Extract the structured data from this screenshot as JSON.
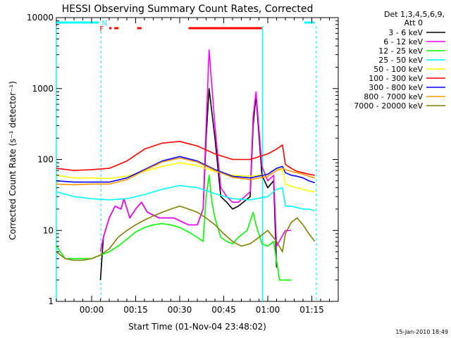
{
  "chart_data": {
    "type": "line",
    "title": "HESSI Observing Summary Count Rates, Corrected",
    "xlabel": "Start Time (01-Nov-04 23:48:02)",
    "ylabel": "Corrected Count Rate (s⁻¹ detector⁻¹)",
    "x_unit": "minutes after 01-Nov-04 23:48:02",
    "xlim": [
      0,
      96
    ],
    "ylim": [
      1,
      10000
    ],
    "y_scale": "log",
    "x_tick_minutes": [
      12,
      27,
      42,
      57,
      72,
      87
    ],
    "x_tick_labels": [
      "00:00",
      "00:15",
      "00:30",
      "00:45",
      "01:00",
      "01:15"
    ],
    "y_ticks": [
      1,
      10,
      100,
      1000,
      10000
    ],
    "y_tick_labels": [
      "1",
      "10",
      "100",
      "1000",
      "10000"
    ],
    "legend": {
      "placement": "right",
      "header": [
        "Det 1,3,4,5,6,9,",
        "Att 0"
      ]
    },
    "series": [
      {
        "name": "3 - 6 keV",
        "color": "#000000",
        "x": [
          15,
          16,
          18,
          20,
          22,
          23,
          25,
          27,
          29,
          31,
          35,
          40,
          45,
          48,
          50,
          51,
          52,
          54,
          56,
          58,
          60,
          62,
          66,
          67,
          68,
          70,
          72,
          74,
          75
        ],
        "y": [
          2,
          8,
          15,
          22,
          20,
          28,
          15,
          20,
          25,
          18,
          15,
          15,
          12,
          12,
          20,
          200,
          1000,
          200,
          30,
          25,
          20,
          22,
          30,
          300,
          800,
          60,
          40,
          50,
          3
        ]
      },
      {
        "name": "6 - 12 keV",
        "color": "#ff00ff",
        "x": [
          15,
          16,
          18,
          20,
          22,
          23,
          25,
          27,
          29,
          31,
          35,
          40,
          45,
          48,
          50,
          51,
          52,
          54,
          56,
          58,
          60,
          62,
          66,
          67,
          68,
          70,
          72,
          74,
          75,
          78,
          80
        ],
        "y": [
          5,
          8,
          15,
          22,
          20,
          28,
          15,
          20,
          25,
          18,
          15,
          15,
          12,
          12,
          20,
          300,
          3500,
          300,
          40,
          30,
          25,
          25,
          35,
          400,
          900,
          80,
          50,
          60,
          6,
          10,
          10
        ]
      },
      {
        "name": "12 - 25 keV",
        "color": "#00ff00",
        "x": [
          0,
          3,
          6,
          9,
          12,
          15,
          18,
          21,
          24,
          27,
          30,
          33,
          36,
          39,
          42,
          45,
          48,
          50,
          51,
          52,
          53,
          54,
          56,
          58,
          60,
          62,
          65,
          67,
          68,
          70,
          72,
          74,
          76,
          78,
          80
        ],
        "y": [
          6,
          4,
          4,
          4,
          4,
          4.5,
          5,
          6,
          7.5,
          9.5,
          11,
          12,
          12.5,
          12,
          11,
          9.5,
          8,
          7,
          30,
          60,
          25,
          15,
          8,
          7,
          6.5,
          8,
          10,
          18,
          12,
          6.5,
          6,
          7,
          2,
          2,
          2
        ]
      },
      {
        "name": "25 - 50 keV",
        "color": "#00ffff",
        "x": [
          0,
          6,
          12,
          18,
          24,
          30,
          36,
          42,
          48,
          54,
          60,
          66,
          72,
          75,
          77,
          78,
          80,
          82,
          84,
          86,
          88
        ],
        "y": [
          35,
          30,
          28,
          27,
          28,
          32,
          38,
          43,
          40,
          33,
          28,
          27,
          30,
          38,
          40,
          22,
          22,
          21,
          20,
          20,
          19
        ]
      },
      {
        "name": "50 - 100 keV",
        "color": "#ffff00",
        "x": [
          0,
          6,
          12,
          18,
          24,
          30,
          36,
          42,
          48,
          54,
          60,
          66,
          72,
          75,
          77,
          78,
          80,
          82,
          84,
          86,
          88
        ],
        "y": [
          60,
          55,
          55,
          54,
          58,
          68,
          80,
          90,
          82,
          68,
          60,
          58,
          62,
          75,
          70,
          45,
          42,
          40,
          38,
          36,
          35
        ]
      },
      {
        "name": "100 - 300 keV",
        "color": "#ff0000",
        "x": [
          0,
          6,
          12,
          18,
          24,
          30,
          36,
          42,
          48,
          54,
          60,
          66,
          72,
          75,
          77,
          78,
          80,
          82,
          84,
          86,
          88
        ],
        "y": [
          75,
          70,
          72,
          75,
          95,
          140,
          170,
          180,
          155,
          120,
          100,
          100,
          120,
          140,
          160,
          85,
          75,
          68,
          65,
          62,
          60
        ]
      },
      {
        "name": "300 - 800 keV",
        "color": "#0000ff",
        "x": [
          0,
          6,
          12,
          18,
          24,
          30,
          36,
          42,
          48,
          54,
          60,
          66,
          72,
          75,
          77,
          78,
          80,
          82,
          84,
          86,
          88
        ],
        "y": [
          50,
          48,
          48,
          48,
          55,
          72,
          95,
          110,
          95,
          72,
          58,
          55,
          62,
          75,
          80,
          65,
          60,
          58,
          55,
          50,
          47
        ]
      },
      {
        "name": "800 - 7000 keV",
        "color": "#ff9900",
        "x": [
          0,
          6,
          12,
          18,
          24,
          30,
          36,
          42,
          48,
          54,
          60,
          66,
          72,
          75,
          77,
          78,
          80,
          82,
          84,
          86,
          88
        ],
        "y": [
          45,
          44,
          45,
          45,
          52,
          70,
          92,
          105,
          92,
          70,
          56,
          52,
          58,
          70,
          75,
          72,
          68,
          65,
          62,
          58,
          55
        ]
      },
      {
        "name": "7000 - 20000 keV",
        "color": "#808000",
        "x": [
          0,
          3,
          6,
          9,
          12,
          15,
          18,
          21,
          24,
          27,
          30,
          33,
          36,
          39,
          42,
          45,
          48,
          51,
          54,
          57,
          60,
          63,
          66,
          69,
          72,
          75,
          77,
          78,
          80,
          82,
          84,
          86,
          88
        ],
        "y": [
          5,
          4,
          3.8,
          3.8,
          4,
          4.5,
          5.5,
          8,
          10,
          12,
          14,
          16,
          18,
          20,
          22,
          20,
          18,
          15,
          12,
          9,
          7,
          6,
          6.5,
          8,
          10,
          7,
          5,
          9,
          13,
          15,
          12,
          9,
          7
        ]
      }
    ],
    "flags": [
      {
        "label": "N",
        "color": "#00ffff",
        "segments": [
          [
            0,
            14.5
          ],
          [
            84.5,
            88
          ]
        ]
      },
      {
        "label": "F",
        "color": "#ff0000",
        "segments": [
          [
            18,
            18.8
          ],
          [
            19.7,
            21.2
          ],
          [
            27.5,
            29
          ],
          [
            45,
            70
          ]
        ]
      }
    ],
    "event_lines_minutes": [
      15.2,
      70.2,
      84.5
    ],
    "cyan_solid_lines_minutes": [
      0,
      70.2
    ],
    "cyan_dashed_lines_minutes": [
      15.2,
      88.5
    ]
  },
  "timestamp": "15-Jan-2010 18:49"
}
